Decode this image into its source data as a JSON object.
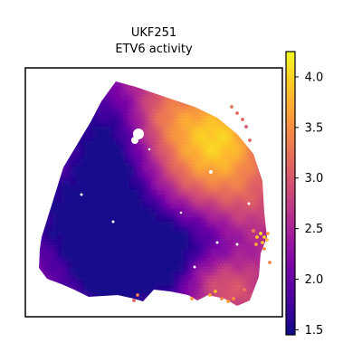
{
  "chart_data": {
    "type": "heatmap",
    "title": [
      "UKF251",
      "ETV6 activity"
    ],
    "xlabel": "",
    "ylabel": "",
    "colormap": "plasma",
    "colorbar": {
      "min": 1.45,
      "max": 4.25,
      "ticks": [
        4.0,
        3.5,
        3.0,
        2.5,
        2.0,
        1.5
      ],
      "tick_labels": [
        "4.0",
        "3.5",
        "3.0",
        "2.5",
        "2.0",
        "1.5"
      ],
      "placement": "right"
    },
    "grid": false,
    "colors": {
      "plasma": [
        "#0d0887",
        "#46039f",
        "#7201a8",
        "#9c179e",
        "#bd3786",
        "#d8576b",
        "#ed7953",
        "#fb9f3a",
        "#fdca26",
        "#f0f921"
      ],
      "axes": "#000000",
      "background": "#ffffff"
    }
  }
}
